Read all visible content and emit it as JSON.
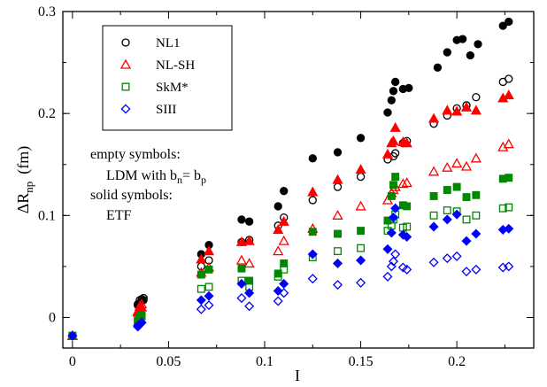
{
  "chart_data": {
    "type": "scatter",
    "title": "",
    "xlabel": "I",
    "ylabel_main": "ΔR",
    "ylabel_sub": "np",
    "ylabel_unit": "(fm)",
    "xlim": [
      -0.005,
      0.24
    ],
    "ylim": [
      -0.03,
      0.3
    ],
    "xticks": [
      0,
      0.05,
      0.1,
      0.15,
      0.2
    ],
    "xtick_labels": [
      "0",
      "0.05",
      "0.1",
      "0.15",
      "0.2"
    ],
    "yticks": [
      0,
      0.1,
      0.2,
      0.3
    ],
    "ytick_labels": [
      "0",
      "0.1",
      "0.2",
      "0.3"
    ],
    "grid": false,
    "legend_position": "top-left",
    "annotation": {
      "line1": "empty symbols:",
      "line2_prefix": "LDM with b",
      "line2_sub1": "n",
      "line2_mid": "= b",
      "line2_sub2": "p",
      "line3": "solid symbols:",
      "line4": "ETF"
    },
    "series": [
      {
        "name": "NL1",
        "marker": "circle",
        "color": "#000000",
        "empty": [
          [
            0,
            -0.018
          ],
          [
            0.034,
            0.013
          ],
          [
            0.035,
            0.017
          ],
          [
            0.036,
            0.018
          ],
          [
            0.037,
            0.019
          ],
          [
            0.067,
            0.05
          ],
          [
            0.071,
            0.056
          ],
          [
            0.088,
            0.074
          ],
          [
            0.092,
            0.076
          ],
          [
            0.107,
            0.09
          ],
          [
            0.11,
            0.098
          ],
          [
            0.125,
            0.115
          ],
          [
            0.138,
            0.128
          ],
          [
            0.15,
            0.138
          ],
          [
            0.164,
            0.155
          ],
          [
            0.167,
            0.158
          ],
          [
            0.168,
            0.161
          ],
          [
            0.172,
            0.171
          ],
          [
            0.174,
            0.173
          ],
          [
            0.188,
            0.19
          ],
          [
            0.195,
            0.198
          ],
          [
            0.2,
            0.205
          ],
          [
            0.205,
            0.208
          ],
          [
            0.21,
            0.216
          ],
          [
            0.224,
            0.231
          ],
          [
            0.227,
            0.234
          ]
        ],
        "solid": [
          [
            0,
            -0.018
          ],
          [
            0.034,
            0.012
          ],
          [
            0.035,
            0.014
          ],
          [
            0.036,
            0.016
          ],
          [
            0.037,
            0.017
          ],
          [
            0.067,
            0.062
          ],
          [
            0.071,
            0.071
          ],
          [
            0.088,
            0.096
          ],
          [
            0.092,
            0.094
          ],
          [
            0.107,
            0.109
          ],
          [
            0.11,
            0.124
          ],
          [
            0.125,
            0.156
          ],
          [
            0.138,
            0.162
          ],
          [
            0.15,
            0.176
          ],
          [
            0.164,
            0.201
          ],
          [
            0.166,
            0.213
          ],
          [
            0.167,
            0.222
          ],
          [
            0.168,
            0.231
          ],
          [
            0.172,
            0.224
          ],
          [
            0.175,
            0.225
          ],
          [
            0.19,
            0.245
          ],
          [
            0.195,
            0.26
          ],
          [
            0.2,
            0.272
          ],
          [
            0.203,
            0.273
          ],
          [
            0.207,
            0.257
          ],
          [
            0.211,
            0.268
          ],
          [
            0.224,
            0.286
          ],
          [
            0.227,
            0.29
          ]
        ]
      },
      {
        "name": "NL-SH",
        "marker": "triangle",
        "color": "#ff0000",
        "empty": [
          [
            0,
            -0.018
          ],
          [
            0.034,
            0.006
          ],
          [
            0.035,
            0.011
          ],
          [
            0.036,
            0.013
          ],
          [
            0.067,
            0.044
          ],
          [
            0.071,
            0.049
          ],
          [
            0.088,
            0.056
          ],
          [
            0.092,
            0.053
          ],
          [
            0.107,
            0.065
          ],
          [
            0.11,
            0.075
          ],
          [
            0.125,
            0.087
          ],
          [
            0.138,
            0.1
          ],
          [
            0.15,
            0.109
          ],
          [
            0.164,
            0.115
          ],
          [
            0.166,
            0.122
          ],
          [
            0.167,
            0.125
          ],
          [
            0.168,
            0.128
          ],
          [
            0.172,
            0.131
          ],
          [
            0.174,
            0.132
          ],
          [
            0.188,
            0.143
          ],
          [
            0.195,
            0.147
          ],
          [
            0.2,
            0.151
          ],
          [
            0.205,
            0.148
          ],
          [
            0.21,
            0.156
          ],
          [
            0.224,
            0.167
          ],
          [
            0.227,
            0.17
          ]
        ],
        "solid": [
          [
            0,
            -0.018
          ],
          [
            0.034,
            0.005
          ],
          [
            0.035,
            0.008
          ],
          [
            0.036,
            0.01
          ],
          [
            0.067,
            0.057
          ],
          [
            0.071,
            0.065
          ],
          [
            0.088,
            0.074
          ],
          [
            0.092,
            0.075
          ],
          [
            0.107,
            0.086
          ],
          [
            0.11,
            0.094
          ],
          [
            0.125,
            0.123
          ],
          [
            0.138,
            0.135
          ],
          [
            0.15,
            0.145
          ],
          [
            0.164,
            0.16
          ],
          [
            0.166,
            0.171
          ],
          [
            0.167,
            0.173
          ],
          [
            0.168,
            0.186
          ],
          [
            0.172,
            0.172
          ],
          [
            0.174,
            0.171
          ],
          [
            0.188,
            0.195
          ],
          [
            0.195,
            0.203
          ],
          [
            0.2,
            0.202
          ],
          [
            0.205,
            0.206
          ],
          [
            0.21,
            0.203
          ],
          [
            0.224,
            0.215
          ],
          [
            0.227,
            0.218
          ]
        ]
      },
      {
        "name": "SkM*",
        "marker": "square",
        "color": "#008800",
        "empty": [
          [
            0,
            -0.018
          ],
          [
            0.034,
            -0.003
          ],
          [
            0.035,
            0.0
          ],
          [
            0.036,
            0.002
          ],
          [
            0.067,
            0.028
          ],
          [
            0.071,
            0.03
          ],
          [
            0.088,
            0.036
          ],
          [
            0.092,
            0.03
          ],
          [
            0.107,
            0.04
          ],
          [
            0.11,
            0.047
          ],
          [
            0.125,
            0.059
          ],
          [
            0.138,
            0.065
          ],
          [
            0.15,
            0.068
          ],
          [
            0.164,
            0.085
          ],
          [
            0.166,
            0.09
          ],
          [
            0.167,
            0.096
          ],
          [
            0.168,
            0.101
          ],
          [
            0.172,
            0.088
          ],
          [
            0.174,
            0.089
          ],
          [
            0.188,
            0.1
          ],
          [
            0.195,
            0.105
          ],
          [
            0.2,
            0.104
          ],
          [
            0.205,
            0.096
          ],
          [
            0.21,
            0.1
          ],
          [
            0.224,
            0.107
          ],
          [
            0.227,
            0.108
          ]
        ],
        "solid": [
          [
            0,
            -0.018
          ],
          [
            0.034,
            -0.004
          ],
          [
            0.035,
            -0.001
          ],
          [
            0.036,
            0.001
          ],
          [
            0.067,
            0.042
          ],
          [
            0.071,
            0.047
          ],
          [
            0.088,
            0.048
          ],
          [
            0.092,
            0.036
          ],
          [
            0.107,
            0.043
          ],
          [
            0.11,
            0.053
          ],
          [
            0.125,
            0.084
          ],
          [
            0.138,
            0.082
          ],
          [
            0.15,
            0.085
          ],
          [
            0.164,
            0.095
          ],
          [
            0.166,
            0.119
          ],
          [
            0.167,
            0.13
          ],
          [
            0.168,
            0.138
          ],
          [
            0.172,
            0.11
          ],
          [
            0.174,
            0.109
          ],
          [
            0.188,
            0.119
          ],
          [
            0.195,
            0.125
          ],
          [
            0.2,
            0.128
          ],
          [
            0.205,
            0.118
          ],
          [
            0.21,
            0.12
          ],
          [
            0.224,
            0.136
          ],
          [
            0.227,
            0.137
          ]
        ]
      },
      {
        "name": "SIII",
        "marker": "diamond",
        "color": "#0000ff",
        "empty": [
          [
            0,
            -0.018
          ],
          [
            0.034,
            -0.009
          ],
          [
            0.035,
            -0.007
          ],
          [
            0.036,
            -0.005
          ],
          [
            0.067,
            0.008
          ],
          [
            0.071,
            0.012
          ],
          [
            0.088,
            0.019
          ],
          [
            0.092,
            0.011
          ],
          [
            0.107,
            0.016
          ],
          [
            0.11,
            0.024
          ],
          [
            0.125,
            0.038
          ],
          [
            0.138,
            0.032
          ],
          [
            0.15,
            0.034
          ],
          [
            0.164,
            0.04
          ],
          [
            0.166,
            0.05
          ],
          [
            0.167,
            0.055
          ],
          [
            0.168,
            0.062
          ],
          [
            0.172,
            0.049
          ],
          [
            0.174,
            0.047
          ],
          [
            0.188,
            0.054
          ],
          [
            0.195,
            0.058
          ],
          [
            0.2,
            0.06
          ],
          [
            0.205,
            0.045
          ],
          [
            0.21,
            0.047
          ],
          [
            0.224,
            0.049
          ],
          [
            0.227,
            0.05
          ]
        ],
        "solid": [
          [
            0,
            -0.018
          ],
          [
            0.034,
            -0.008
          ],
          [
            0.035,
            -0.007
          ],
          [
            0.036,
            -0.005
          ],
          [
            0.067,
            0.017
          ],
          [
            0.071,
            0.021
          ],
          [
            0.088,
            0.033
          ],
          [
            0.092,
            0.024
          ],
          [
            0.107,
            0.026
          ],
          [
            0.11,
            0.033
          ],
          [
            0.125,
            0.062
          ],
          [
            0.138,
            0.053
          ],
          [
            0.15,
            0.056
          ],
          [
            0.164,
            0.067
          ],
          [
            0.166,
            0.083
          ],
          [
            0.167,
            0.098
          ],
          [
            0.168,
            0.107
          ],
          [
            0.172,
            0.081
          ],
          [
            0.174,
            0.079
          ],
          [
            0.188,
            0.089
          ],
          [
            0.195,
            0.096
          ],
          [
            0.2,
            0.101
          ],
          [
            0.205,
            0.075
          ],
          [
            0.21,
            0.082
          ],
          [
            0.224,
            0.086
          ],
          [
            0.227,
            0.087
          ]
        ]
      }
    ]
  }
}
